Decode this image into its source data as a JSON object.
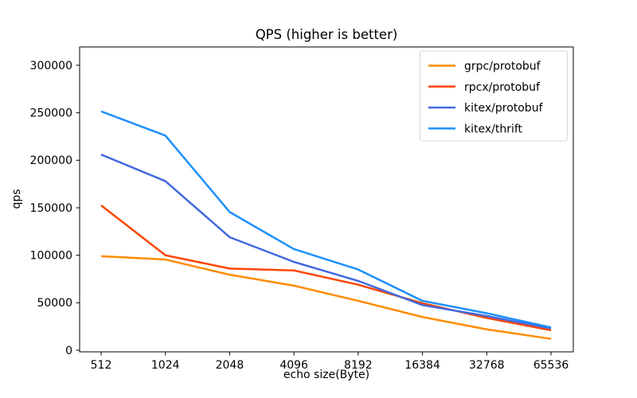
{
  "chart_data": {
    "type": "line",
    "title": "QPS (higher is better)",
    "xlabel": "echo size(Byte)",
    "ylabel": "qps",
    "categories": [
      "512",
      "1024",
      "2048",
      "4096",
      "8192",
      "16384",
      "32768",
      "65536"
    ],
    "series": [
      {
        "name": "grpc/protobuf",
        "color": "#ff8c00",
        "values": [
          99000,
          95500,
          79500,
          68000,
          52000,
          35000,
          22000,
          12000
        ]
      },
      {
        "name": "rpcx/protobuf",
        "color": "#ff4500",
        "values": [
          152500,
          100000,
          86000,
          84000,
          69000,
          49500,
          34000,
          21000
        ]
      },
      {
        "name": "kitex/protobuf",
        "color": "#4169e1",
        "values": [
          206000,
          178000,
          119000,
          93000,
          73000,
          47500,
          36000,
          23000
        ]
      },
      {
        "name": "kitex/thrift",
        "color": "#1e90ff",
        "values": [
          251500,
          226000,
          145500,
          106500,
          85000,
          52000,
          39000,
          24000
        ]
      }
    ],
    "yticks": [
      0,
      50000,
      100000,
      150000,
      200000,
      250000,
      300000
    ],
    "ylim": [
      0,
      300000
    ],
    "legend_position": "upper right",
    "grid": false,
    "colors": {
      "spine": "#000000",
      "background": "#ffffff",
      "legend_border": "#d5d5d5"
    }
  }
}
